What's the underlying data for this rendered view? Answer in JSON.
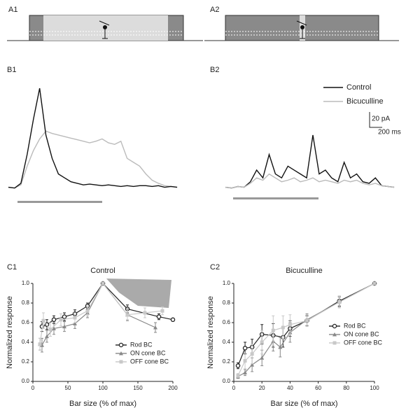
{
  "panels": {
    "a1": "A1",
    "a2": "A2"
  },
  "chart_data": [
    {
      "type": "trace",
      "panel": "B1",
      "x": [
        0,
        100,
        200,
        300,
        400,
        500,
        600,
        700,
        800,
        900,
        1000,
        1100,
        1200,
        1300,
        1400,
        1500,
        1600,
        1700,
        1800,
        1900,
        2000,
        2100,
        2200,
        2300,
        2400,
        2500,
        2600,
        2700
      ],
      "xlim": [
        0,
        2800
      ],
      "ylim": [
        -10,
        140
      ],
      "series": [
        {
          "color": "#bbbbbb",
          "values": [
            3,
            2,
            6,
            30,
            50,
            65,
            75,
            72,
            70,
            68,
            66,
            64,
            62,
            60,
            62,
            65,
            60,
            58,
            62,
            40,
            35,
            30,
            20,
            12,
            8,
            5,
            4,
            3
          ]
        },
        {
          "color": "#111111",
          "values": [
            3,
            2,
            8,
            45,
            90,
            130,
            70,
            40,
            20,
            15,
            10,
            8,
            6,
            7,
            6,
            5,
            6,
            5,
            4,
            5,
            4,
            5,
            5,
            4,
            5,
            3,
            4,
            3
          ]
        }
      ]
    },
    {
      "type": "trace",
      "panel": "B2",
      "annotations": [
        "20 pA",
        "200 ms"
      ],
      "x": [
        0,
        100,
        200,
        300,
        400,
        500,
        600,
        700,
        800,
        900,
        1000,
        1100,
        1200,
        1300,
        1400,
        1500,
        1600,
        1700,
        1800,
        1900,
        2000,
        2100,
        2200,
        2300,
        2400,
        2500,
        2600,
        2700
      ],
      "xlim": [
        0,
        2800
      ],
      "ylim": [
        -10,
        140
      ],
      "series": [
        {
          "name": "Control",
          "color": "#111111",
          "values": [
            3,
            2,
            4,
            3,
            10,
            25,
            15,
            45,
            20,
            15,
            30,
            25,
            20,
            15,
            70,
            20,
            25,
            15,
            10,
            35,
            15,
            20,
            10,
            8,
            15,
            5,
            4,
            3
          ]
        },
        {
          "name": "Bicuculline",
          "color": "#bbbbbb",
          "values": [
            3,
            2,
            4,
            3,
            8,
            15,
            12,
            20,
            15,
            10,
            12,
            15,
            10,
            12,
            15,
            10,
            12,
            10,
            8,
            12,
            10,
            12,
            8,
            6,
            8,
            5,
            4,
            3
          ]
        }
      ]
    },
    {
      "type": "line",
      "panel": "C1",
      "title": "Control",
      "x_label": "Bar size (% of max)",
      "y_label": "Normalized response",
      "xlim": [
        0,
        200
      ],
      "xticks": [
        0,
        50,
        100,
        150,
        200
      ],
      "ylim": [
        0,
        1
      ],
      "yticks": [
        {
          "value": 0,
          "label": "0.0"
        },
        {
          "value": 0.2,
          "label": "0.2"
        },
        {
          "value": 0.4,
          "label": "0.4"
        },
        {
          "value": 0.6,
          "label": "0.6"
        },
        {
          "value": 0.8,
          "label": "0.8"
        },
        {
          "value": 1,
          "label": "1.0"
        }
      ],
      "series": [
        {
          "name": "Rod BC",
          "color": "#222222",
          "marker": "circle",
          "x": [
            13,
            20,
            30,
            45,
            60,
            78,
            100,
            135,
            180,
            200
          ],
          "values": [
            0.56,
            0.58,
            0.63,
            0.66,
            0.69,
            0.77,
            1.0,
            0.74,
            0.66,
            0.63
          ],
          "errors": [
            0.05,
            0.05,
            0.04,
            0.04,
            0.04,
            0.03,
            0,
            0.04,
            0.03,
            0
          ]
        },
        {
          "name": "ON cone BC",
          "color": "#888888",
          "marker": "triangle",
          "x": [
            10,
            13,
            20,
            30,
            45,
            60,
            78,
            100,
            135,
            175
          ],
          "values": [
            0.38,
            0.37,
            0.46,
            0.54,
            0.56,
            0.59,
            0.7,
            1.0,
            0.68,
            0.55
          ],
          "errors": [
            0.06,
            0.07,
            0.06,
            0.06,
            0.05,
            0.05,
            0.05,
            0,
            0.06,
            0.05
          ]
        },
        {
          "name": "OFF cone BC",
          "color": "#c8c8c8",
          "marker": "square",
          "x": [
            10,
            15,
            25,
            40,
            60,
            78,
            100,
            135,
            160,
            185
          ],
          "values": [
            0.38,
            0.62,
            0.53,
            0.63,
            0.65,
            0.72,
            1.0,
            0.68,
            0.7,
            0.72
          ],
          "errors": [
            0.06,
            0.08,
            0.07,
            0.06,
            0.05,
            0.05,
            0,
            0.05,
            0.05,
            0.04
          ]
        }
      ]
    },
    {
      "type": "line",
      "panel": "C2",
      "title": "Bicuculline",
      "x_label": "Bar size (% of max)",
      "y_label": "Normalized response",
      "xlim": [
        0,
        100
      ],
      "xticks": [
        0,
        20,
        40,
        60,
        80,
        100
      ],
      "ylim": [
        0,
        1
      ],
      "yticks": [
        {
          "value": 0,
          "label": "0.0"
        },
        {
          "value": 0.2,
          "label": "0.2"
        },
        {
          "value": 0.4,
          "label": "0.4"
        },
        {
          "value": 0.6,
          "label": "0.6"
        },
        {
          "value": 0.8,
          "label": "0.8"
        },
        {
          "value": 1,
          "label": "1.0"
        }
      ],
      "series": [
        {
          "name": "Rod BC",
          "color": "#222222",
          "marker": "circle",
          "x": [
            3,
            8,
            13,
            20,
            28,
            35,
            40,
            52,
            75,
            100
          ],
          "values": [
            0.16,
            0.34,
            0.35,
            0.48,
            0.47,
            0.45,
            0.54,
            0.62,
            0.82,
            1.0
          ],
          "errors": [
            0.03,
            0.06,
            0.08,
            0.1,
            0.12,
            0.1,
            0.08,
            0.05,
            0.05,
            0
          ]
        },
        {
          "name": "ON cone BC",
          "color": "#888888",
          "marker": "triangle",
          "x": [
            3,
            8,
            13,
            20,
            28,
            33,
            40,
            52,
            75,
            100
          ],
          "values": [
            0.05,
            0.09,
            0.17,
            0.24,
            0.41,
            0.35,
            0.5,
            0.63,
            0.81,
            1.0
          ],
          "errors": [
            0.02,
            0.03,
            0.07,
            0.08,
            0.1,
            0.1,
            0.1,
            0.06,
            0.05,
            0
          ]
        },
        {
          "name": "OFF cone BC",
          "color": "#c8c8c8",
          "marker": "square",
          "x": [
            3,
            8,
            13,
            20,
            28,
            35,
            40,
            52,
            75,
            100
          ],
          "values": [
            0.06,
            0.21,
            0.28,
            0.4,
            0.52,
            0.55,
            0.58,
            0.62,
            0.81,
            1.0
          ],
          "errors": [
            0.02,
            0.08,
            0.1,
            0.12,
            0.15,
            0.12,
            0.1,
            0.06,
            0.06,
            0
          ]
        }
      ]
    }
  ]
}
